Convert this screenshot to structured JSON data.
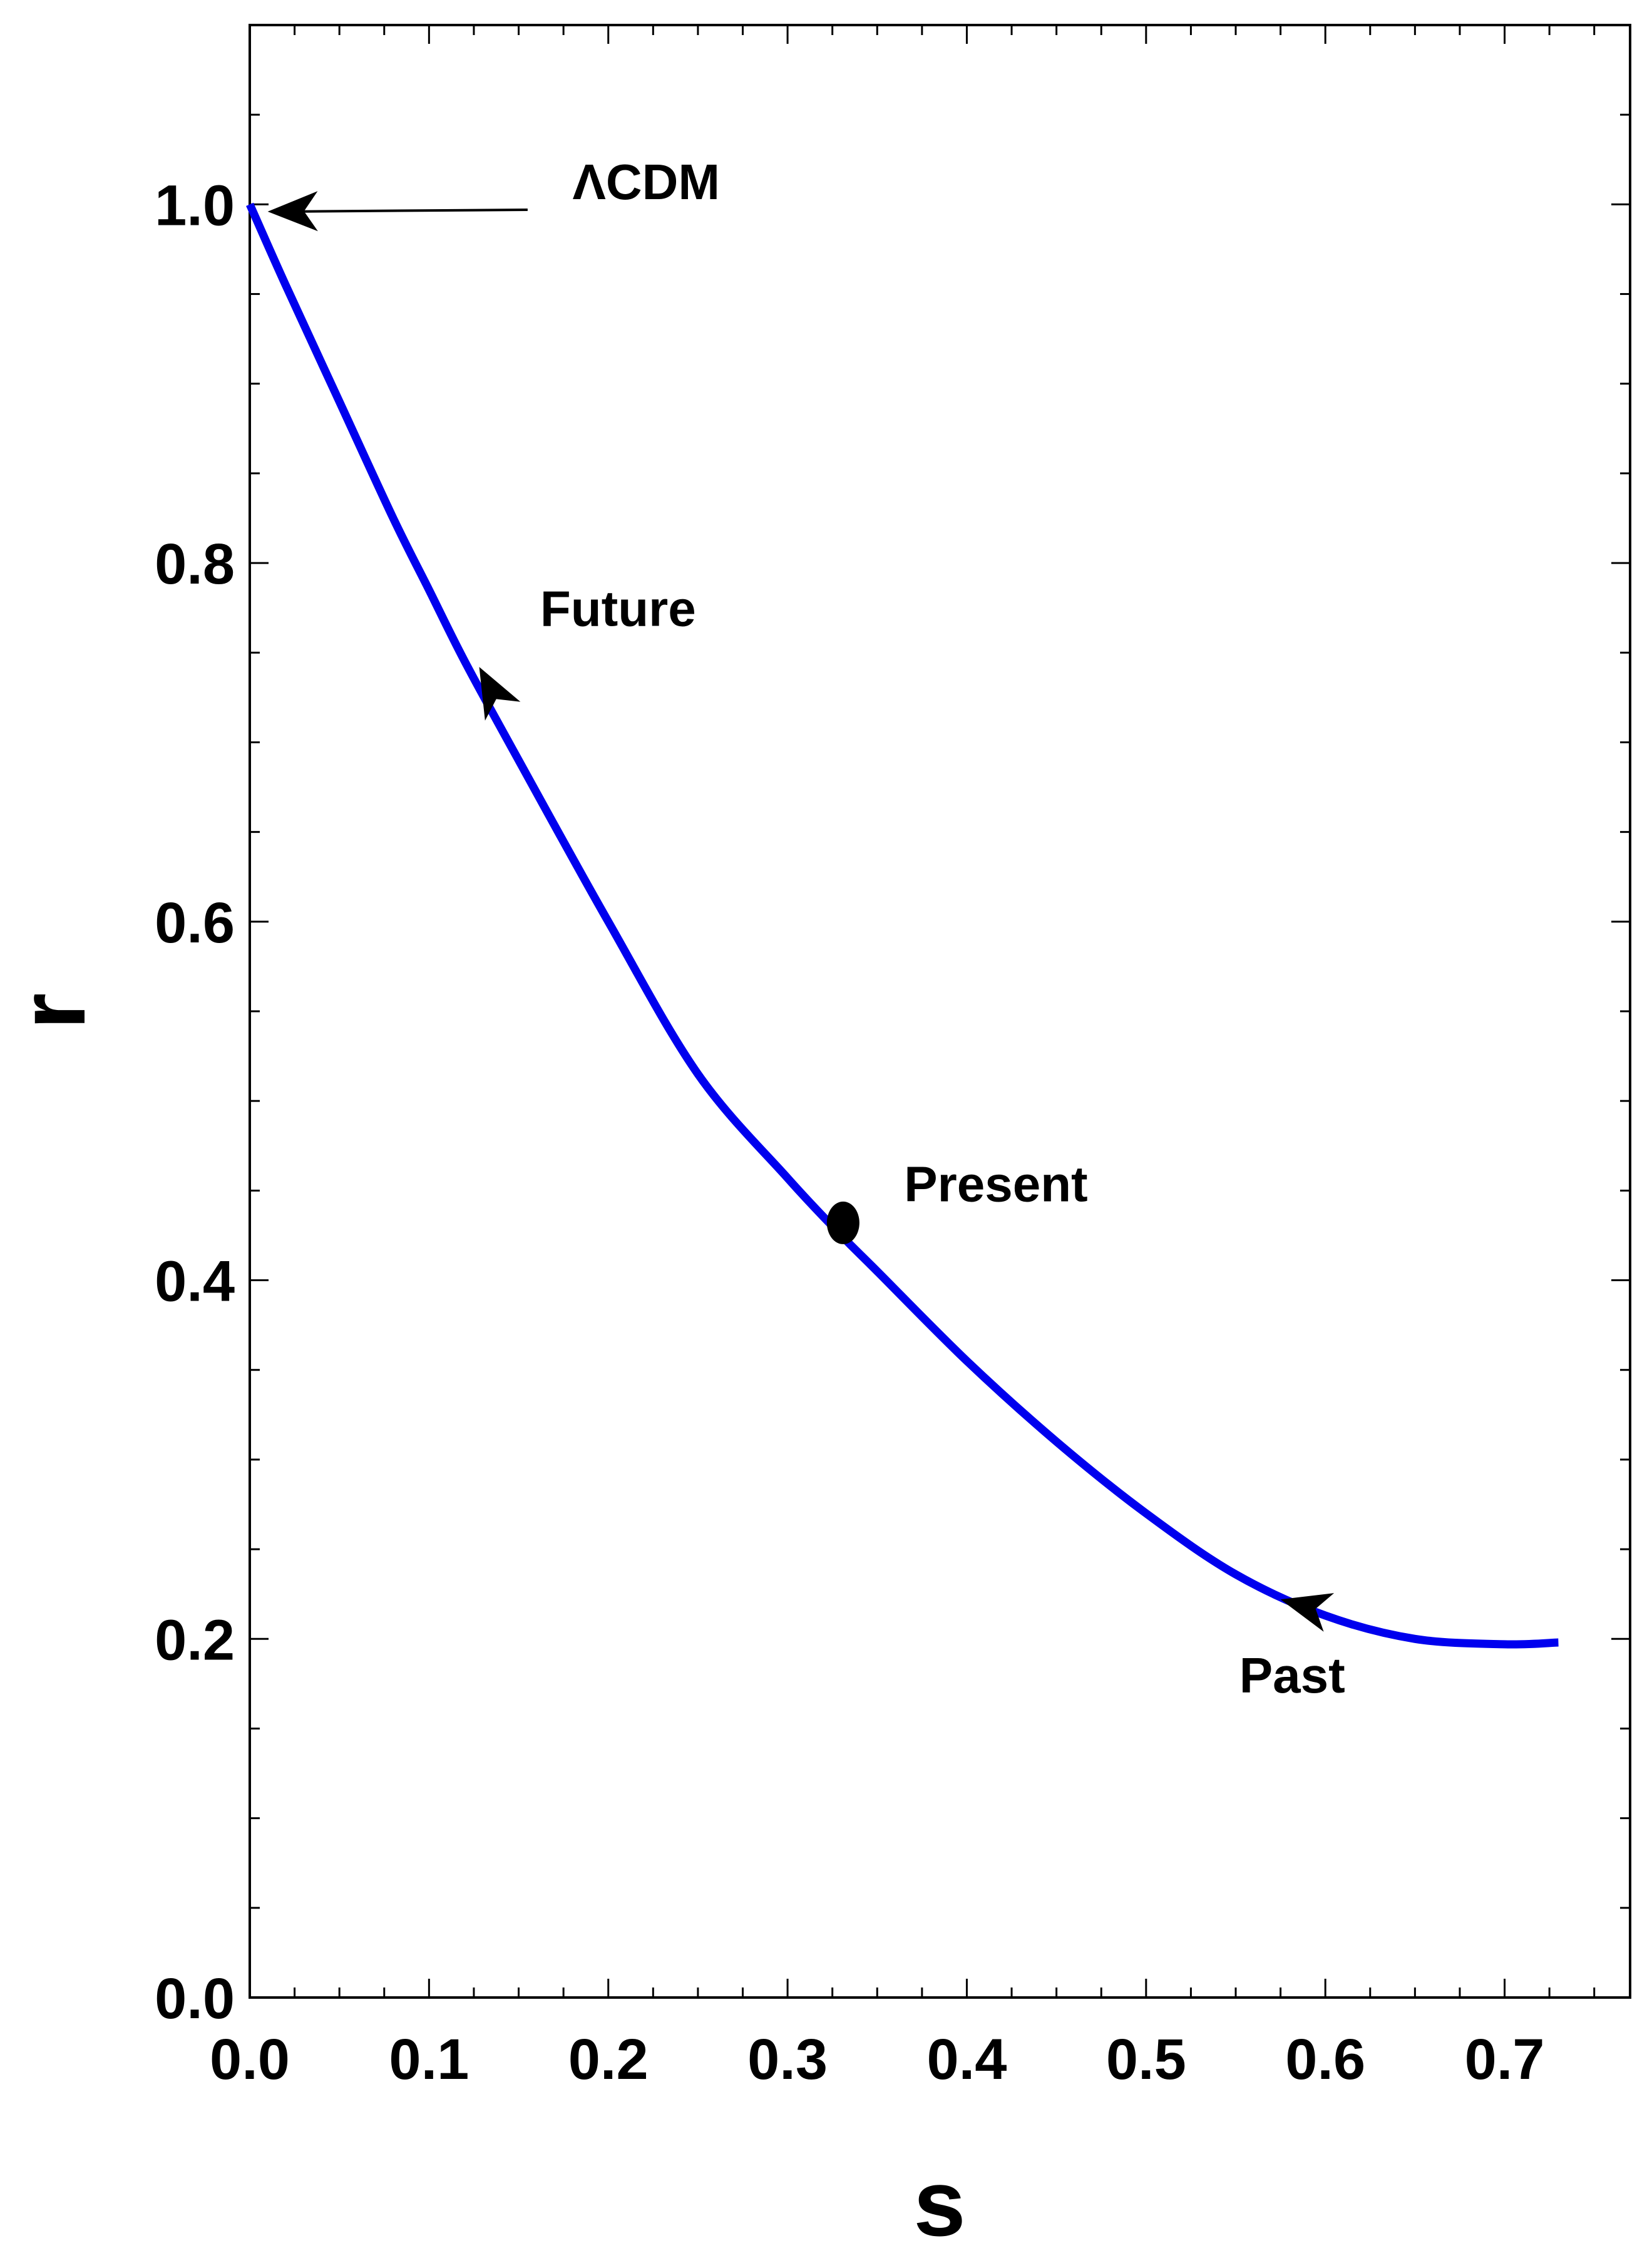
{
  "chart_data": {
    "type": "line",
    "title": "",
    "xlabel": "s",
    "ylabel": "r",
    "xlim": [
      0,
      0.77
    ],
    "ylim": [
      0,
      1.1
    ],
    "x_ticks": [
      "0.0",
      "0.1",
      "0.2",
      "0.3",
      "0.4",
      "0.5",
      "0.6",
      "0.7"
    ],
    "y_ticks": [
      "0.0",
      "0.2",
      "0.4",
      "0.6",
      "0.8",
      "1.0"
    ],
    "x_tick_values": [
      0,
      0.1,
      0.2,
      0.3,
      0.4,
      0.5,
      0.6,
      0.7
    ],
    "y_tick_values": [
      0,
      0.2,
      0.4,
      0.6,
      0.8,
      1.0
    ],
    "grid": false,
    "series": [
      {
        "color": "#0000ee",
        "x": [
          0.0,
          0.02,
          0.05,
          0.08,
          0.1,
          0.12,
          0.15,
          0.2,
          0.25,
          0.3,
          0.33,
          0.35,
          0.4,
          0.45,
          0.5,
          0.55,
          0.6,
          0.65,
          0.7,
          0.73
        ],
        "y": [
          1.0,
          0.955,
          0.89,
          0.825,
          0.785,
          0.745,
          0.69,
          0.6,
          0.515,
          0.457,
          0.425,
          0.405,
          0.355,
          0.31,
          0.27,
          0.236,
          0.213,
          0.2,
          0.197,
          0.198
        ]
      }
    ],
    "annotations": [
      {
        "text": "ΛCDM",
        "x": 0.18,
        "y": 1.003,
        "arrow_from": [
          0.155,
          0.997
        ],
        "arrow_to": [
          0.01,
          0.996
        ]
      },
      {
        "text": "Future",
        "x": 0.162,
        "y": 0.765,
        "arrow_on_curve": [
          0.128,
          0.742
        ],
        "direction": "up"
      },
      {
        "text": "Present",
        "x": 0.365,
        "y": 0.444,
        "marker": [
          0.331,
          0.432
        ]
      },
      {
        "text": "Past",
        "x": 0.552,
        "y": 0.17,
        "arrow_on_curve": [
          0.575,
          0.222
        ],
        "direction": "left"
      }
    ]
  }
}
